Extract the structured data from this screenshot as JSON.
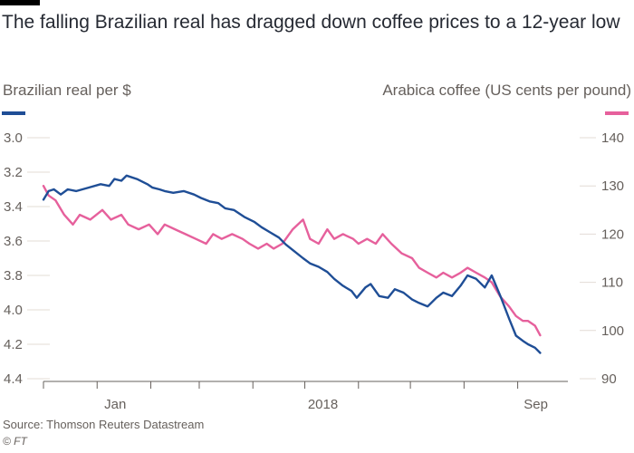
{
  "title": "The falling Brazilian real has dragged down coffee prices to a 12-year low",
  "source": "Source: Thomson Reuters Datastream",
  "credit": "© FT",
  "colors": {
    "real": "#1f4e96",
    "coffee": "#e6609c",
    "grid": "#e3dcd6",
    "axis": "#66605c"
  },
  "chart_data": {
    "type": "line",
    "title": "The falling Brazilian real has dragged down coffee prices to a 12-year low",
    "left_axis": {
      "label": "Brazilian real per $",
      "inverted": true,
      "range": [
        3.0,
        4.4
      ],
      "ticks": [
        "3.0",
        "3.2",
        "3.4",
        "3.6",
        "3.8",
        "4.0",
        "4.2",
        "4.4"
      ]
    },
    "right_axis": {
      "label": "Arabica coffee (US cents per pound)",
      "range": [
        90,
        140
      ],
      "ticks": [
        "90",
        "100",
        "110",
        "120",
        "130",
        "140"
      ]
    },
    "x_axis": {
      "range": [
        "2017-12-01",
        "2018-09-30"
      ],
      "tick_dates": [
        "2017-12-01",
        "2018-01-01",
        "2018-02-01",
        "2018-03-01",
        "2018-04-01",
        "2018-05-01",
        "2018-06-01",
        "2018-07-01",
        "2018-08-01",
        "2018-09-01"
      ],
      "labels": [
        {
          "text": "Jan",
          "date": "2018-01-01"
        },
        {
          "text": "2018",
          "date": "2018-05-01"
        },
        {
          "text": "Sep",
          "date": "2018-09-01"
        }
      ]
    },
    "grid": true,
    "series": [
      {
        "name": "Brazilian real per $",
        "axis": "left",
        "points": [
          [
            "2017-12-01",
            3.36
          ],
          [
            "2017-12-04",
            3.31
          ],
          [
            "2017-12-07",
            3.3
          ],
          [
            "2017-12-11",
            3.33
          ],
          [
            "2017-12-15",
            3.3
          ],
          [
            "2017-12-20",
            3.31
          ],
          [
            "2017-12-27",
            3.29
          ],
          [
            "2018-01-03",
            3.27
          ],
          [
            "2018-01-08",
            3.28
          ],
          [
            "2018-01-11",
            3.24
          ],
          [
            "2018-01-15",
            3.25
          ],
          [
            "2018-01-18",
            3.22
          ],
          [
            "2018-01-24",
            3.24
          ],
          [
            "2018-01-30",
            3.27
          ],
          [
            "2018-02-02",
            3.29
          ],
          [
            "2018-02-06",
            3.3
          ],
          [
            "2018-02-09",
            3.31
          ],
          [
            "2018-02-14",
            3.32
          ],
          [
            "2018-02-20",
            3.31
          ],
          [
            "2018-02-26",
            3.33
          ],
          [
            "2018-03-02",
            3.35
          ],
          [
            "2018-03-07",
            3.37
          ],
          [
            "2018-03-12",
            3.38
          ],
          [
            "2018-03-16",
            3.41
          ],
          [
            "2018-03-21",
            3.42
          ],
          [
            "2018-03-27",
            3.46
          ],
          [
            "2018-04-02",
            3.49
          ],
          [
            "2018-04-06",
            3.52
          ],
          [
            "2018-04-11",
            3.55
          ],
          [
            "2018-04-16",
            3.58
          ],
          [
            "2018-04-20",
            3.62
          ],
          [
            "2018-04-25",
            3.66
          ],
          [
            "2018-04-30",
            3.7
          ],
          [
            "2018-05-04",
            3.73
          ],
          [
            "2018-05-09",
            3.75
          ],
          [
            "2018-05-14",
            3.78
          ],
          [
            "2018-05-18",
            3.82
          ],
          [
            "2018-05-23",
            3.86
          ],
          [
            "2018-05-28",
            3.89
          ],
          [
            "2018-05-31",
            3.93
          ],
          [
            "2018-06-05",
            3.87
          ],
          [
            "2018-06-08",
            3.85
          ],
          [
            "2018-06-13",
            3.92
          ],
          [
            "2018-06-18",
            3.93
          ],
          [
            "2018-06-22",
            3.88
          ],
          [
            "2018-06-27",
            3.9
          ],
          [
            "2018-07-02",
            3.94
          ],
          [
            "2018-07-06",
            3.96
          ],
          [
            "2018-07-11",
            3.98
          ],
          [
            "2018-07-16",
            3.93
          ],
          [
            "2018-07-20",
            3.9
          ],
          [
            "2018-07-25",
            3.92
          ],
          [
            "2018-07-30",
            3.86
          ],
          [
            "2018-08-03",
            3.8
          ],
          [
            "2018-08-08",
            3.82
          ],
          [
            "2018-08-13",
            3.87
          ],
          [
            "2018-08-17",
            3.8
          ],
          [
            "2018-08-22",
            3.92
          ],
          [
            "2018-08-27",
            4.05
          ],
          [
            "2018-08-31",
            4.15
          ],
          [
            "2018-09-04",
            4.18
          ],
          [
            "2018-09-07",
            4.2
          ],
          [
            "2018-09-11",
            4.22
          ],
          [
            "2018-09-14",
            4.25
          ]
        ]
      },
      {
        "name": "Arabica coffee (US cents per pound)",
        "axis": "right",
        "points": [
          [
            "2017-12-01",
            130
          ],
          [
            "2017-12-04",
            128
          ],
          [
            "2017-12-08",
            127
          ],
          [
            "2017-12-13",
            124
          ],
          [
            "2017-12-18",
            122
          ],
          [
            "2017-12-22",
            124
          ],
          [
            "2017-12-28",
            123
          ],
          [
            "2018-01-04",
            125
          ],
          [
            "2018-01-09",
            123
          ],
          [
            "2018-01-15",
            124
          ],
          [
            "2018-01-19",
            122
          ],
          [
            "2018-01-25",
            121
          ],
          [
            "2018-01-31",
            122
          ],
          [
            "2018-02-05",
            120
          ],
          [
            "2018-02-09",
            122
          ],
          [
            "2018-02-15",
            121
          ],
          [
            "2018-02-21",
            120
          ],
          [
            "2018-02-27",
            119
          ],
          [
            "2018-03-05",
            118
          ],
          [
            "2018-03-09",
            120
          ],
          [
            "2018-03-14",
            119
          ],
          [
            "2018-03-20",
            120
          ],
          [
            "2018-03-26",
            119
          ],
          [
            "2018-03-30",
            118
          ],
          [
            "2018-04-04",
            117
          ],
          [
            "2018-04-09",
            118
          ],
          [
            "2018-04-13",
            117
          ],
          [
            "2018-04-18",
            118
          ],
          [
            "2018-04-24",
            121
          ],
          [
            "2018-04-30",
            123
          ],
          [
            "2018-05-04",
            119
          ],
          [
            "2018-05-09",
            118
          ],
          [
            "2018-05-14",
            121
          ],
          [
            "2018-05-18",
            119
          ],
          [
            "2018-05-23",
            120
          ],
          [
            "2018-05-29",
            119
          ],
          [
            "2018-06-01",
            118
          ],
          [
            "2018-06-06",
            119
          ],
          [
            "2018-06-11",
            118
          ],
          [
            "2018-06-15",
            120
          ],
          [
            "2018-06-20",
            118
          ],
          [
            "2018-06-26",
            116
          ],
          [
            "2018-07-02",
            115
          ],
          [
            "2018-07-06",
            113
          ],
          [
            "2018-07-11",
            112
          ],
          [
            "2018-07-16",
            111
          ],
          [
            "2018-07-20",
            112
          ],
          [
            "2018-07-25",
            111
          ],
          [
            "2018-07-30",
            112
          ],
          [
            "2018-08-03",
            113
          ],
          [
            "2018-08-08",
            112
          ],
          [
            "2018-08-13",
            111
          ],
          [
            "2018-08-17",
            110
          ],
          [
            "2018-08-22",
            107
          ],
          [
            "2018-08-27",
            105
          ],
          [
            "2018-08-31",
            103
          ],
          [
            "2018-09-04",
            102
          ],
          [
            "2018-09-07",
            102
          ],
          [
            "2018-09-11",
            101
          ],
          [
            "2018-09-14",
            99
          ]
        ]
      }
    ]
  }
}
